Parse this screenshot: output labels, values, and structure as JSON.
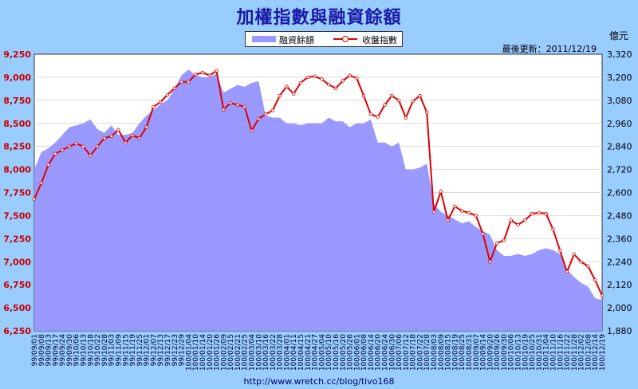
{
  "title": "加權指數與融資餘額",
  "legend": {
    "margin_label": "融資餘額",
    "index_label": "收盤指數"
  },
  "right_unit": "億元",
  "updated": "最後更新：2011/12/19",
  "url": "http://www.wretch.cc/blog/tivo168",
  "colors": {
    "background": "#99ccff",
    "plot_bg": "#ffffff",
    "area": "#9999ff",
    "line": "#e00000",
    "left_axis_text": "#cc0000",
    "right_axis_text": "#000000"
  },
  "chart_data": {
    "type": "line",
    "title": "加權指數與融資餘額",
    "x_tick_labels": [
      "99/09/01",
      "99/09/08",
      "99/09/13",
      "99/09/17",
      "99/09/24",
      "99/09/30",
      "99/10/06",
      "99/10/13",
      "99/10/18",
      "99/10/22",
      "99/10/28",
      "99/11/03",
      "99/11/09",
      "99/11/15",
      "99/11/19",
      "99/11/25",
      "99/12/01",
      "99/12/07",
      "99/12/13",
      "99/12/17",
      "99/12/23",
      "99/12/29",
      "100/01/04",
      "100/01/10",
      "100/01/14",
      "100/01/20",
      "100/01/26",
      "100/02/09",
      "100/02/15",
      "100/02/21",
      "100/02/25",
      "100/03/04",
      "100/03/10",
      "100/03/16",
      "100/03/22",
      "100/03/28",
      "100/04/01",
      "100/04/11",
      "100/04/15",
      "100/04/21",
      "100/04/27",
      "100/05/04",
      "100/05/10",
      "100/05/16",
      "100/05/20",
      "100/05/26",
      "100/06/01",
      "100/06/08",
      "100/06/14",
      "100/06/20",
      "100/06/24",
      "100/06/30",
      "100/07/06",
      "100/07/12",
      "100/07/18",
      "100/07/22",
      "100/07/28",
      "100/08/03",
      "100/08/09",
      "100/08/15",
      "100/08/19",
      "100/08/25",
      "100/08/31",
      "100/09/07",
      "100/09/14",
      "100/09/20",
      "100/09/26",
      "100/09/30",
      "100/10/06",
      "100/10/13",
      "100/10/19",
      "100/10/25",
      "100/10/31",
      "100/11/04",
      "100/11/10",
      "100/11/16",
      "100/11/22",
      "100/11/28",
      "100/12/02",
      "100/12/08",
      "100/12/14",
      "100/12/19"
    ],
    "y_left": {
      "min": 6250,
      "max": 9250,
      "ticks": [
        6250,
        6500,
        6750,
        7000,
        7250,
        7500,
        7750,
        8000,
        8250,
        8500,
        8750,
        9000,
        9250
      ],
      "tick_labels": [
        "6,250",
        "6,500",
        "6,750",
        "7,000",
        "7,250",
        "7,500",
        "7,750",
        "8,000",
        "8,250",
        "8,500",
        "8,750",
        "9,000",
        "9,250"
      ]
    },
    "y_right": {
      "min": 1880,
      "max": 3320,
      "ticks": [
        1880,
        2000,
        2120,
        2240,
        2360,
        2480,
        2600,
        2720,
        2840,
        2960,
        3080,
        3200,
        3320
      ],
      "tick_labels": [
        "1,880",
        "2,000",
        "2,120",
        "2,240",
        "2,360",
        "2,480",
        "2,600",
        "2,720",
        "2,840",
        "2,960",
        "3,080",
        "3,200",
        "3,320"
      ]
    },
    "grid": true,
    "legend_position": "top",
    "series": [
      {
        "name": "融資餘額",
        "kind": "area",
        "axis": "right",
        "values": [
          2720,
          2810,
          2830,
          2860,
          2900,
          2940,
          2950,
          2960,
          2980,
          2930,
          2910,
          2950,
          2900,
          2900,
          2910,
          2960,
          3000,
          3030,
          3060,
          3080,
          3140,
          3210,
          3240,
          3210,
          3200,
          3200,
          3220,
          3120,
          3140,
          3160,
          3150,
          3170,
          3180,
          3000,
          2990,
          2990,
          2960,
          2960,
          2950,
          2960,
          2960,
          2960,
          2990,
          2970,
          2970,
          2940,
          2960,
          2960,
          2980,
          2860,
          2860,
          2840,
          2860,
          2720,
          2720,
          2730,
          2750,
          2540,
          2500,
          2480,
          2460,
          2440,
          2450,
          2420,
          2400,
          2380,
          2300,
          2270,
          2270,
          2280,
          2270,
          2280,
          2300,
          2310,
          2300,
          2280,
          2200,
          2160,
          2130,
          2110,
          2050,
          2040
        ]
      },
      {
        "name": "收盤指數",
        "kind": "line",
        "axis": "left",
        "values": [
          7680,
          7850,
          8050,
          8170,
          8210,
          8250,
          8280,
          8250,
          8150,
          8250,
          8340,
          8360,
          8430,
          8290,
          8370,
          8340,
          8460,
          8680,
          8730,
          8810,
          8880,
          8950,
          8950,
          9030,
          9050,
          9020,
          9070,
          8650,
          8720,
          8700,
          8680,
          8420,
          8550,
          8600,
          8640,
          8800,
          8900,
          8820,
          8940,
          9000,
          9010,
          8980,
          8920,
          8880,
          8960,
          9020,
          8990,
          8800,
          8600,
          8570,
          8700,
          8800,
          8750,
          8560,
          8740,
          8800,
          8620,
          7540,
          7760,
          7450,
          7600,
          7550,
          7530,
          7500,
          7300,
          7000,
          7200,
          7230,
          7450,
          7400,
          7450,
          7520,
          7530,
          7520,
          7350,
          7120,
          6890,
          7080,
          7000,
          6950,
          6800,
          6630
        ]
      }
    ]
  }
}
